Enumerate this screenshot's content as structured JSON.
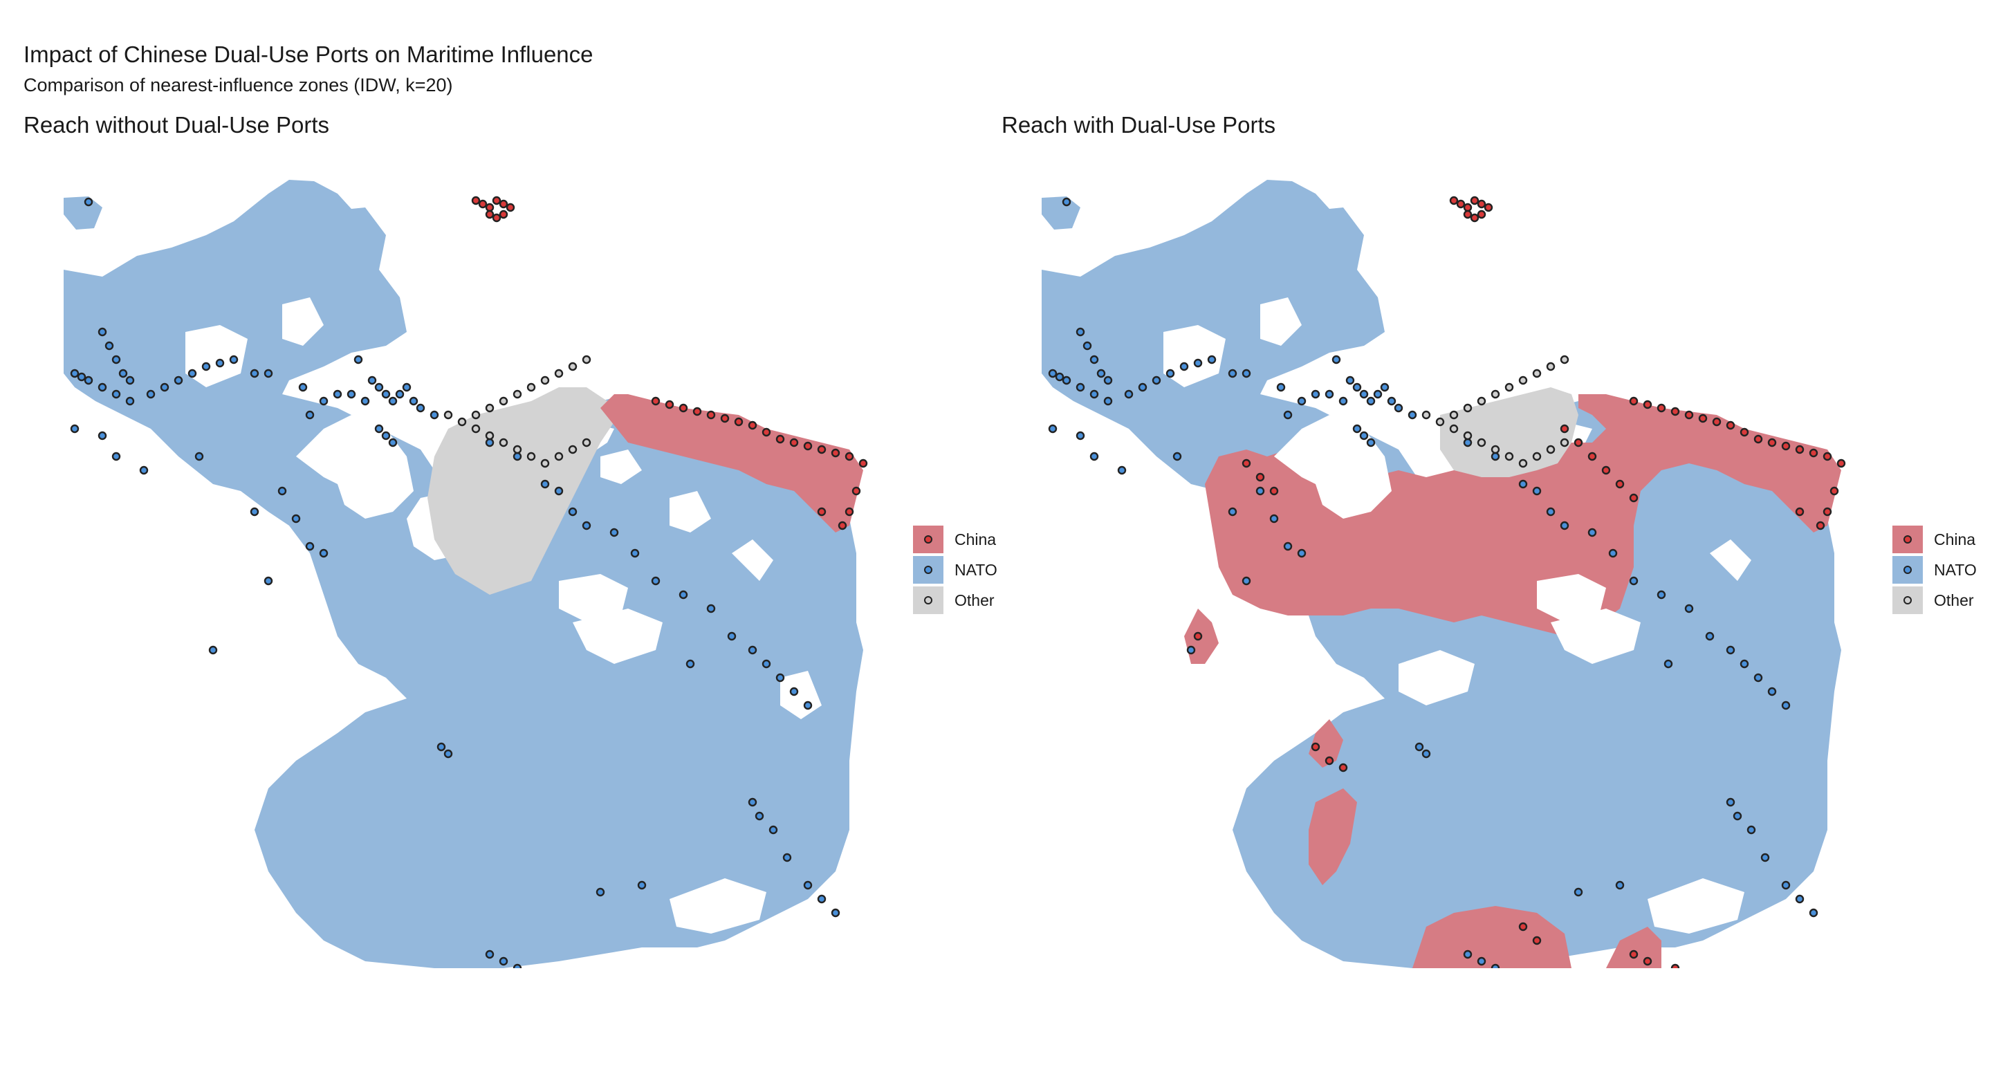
{
  "figure": {
    "title": "Impact of Chinese Dual-Use Ports on Maritime Influence",
    "subtitle": "Comparison of nearest-influence zones (IDW, k=20)"
  },
  "panels": [
    {
      "id": "without",
      "title": "Reach without Dual-Use Ports"
    },
    {
      "id": "with",
      "title": "Reach with Dual-Use Ports"
    }
  ],
  "legend": {
    "items": [
      {
        "label": "China",
        "color": "#d67c84",
        "dot": "#d93a3a"
      },
      {
        "label": "NATO",
        "color": "#94b8dc",
        "dot": "#4a90d9"
      },
      {
        "label": "Other",
        "color": "#d3d3d3",
        "dot": "#cfcfcf"
      }
    ]
  },
  "colors": {
    "china_zone": "#d67c84",
    "nato_zone": "#94b8dc",
    "other_zone": "#d3d3d3",
    "china_port": "#d93a3a",
    "nato_port": "#4a90d9",
    "other_port": "#cfcfcf",
    "port_outline": "#222222"
  }
}
